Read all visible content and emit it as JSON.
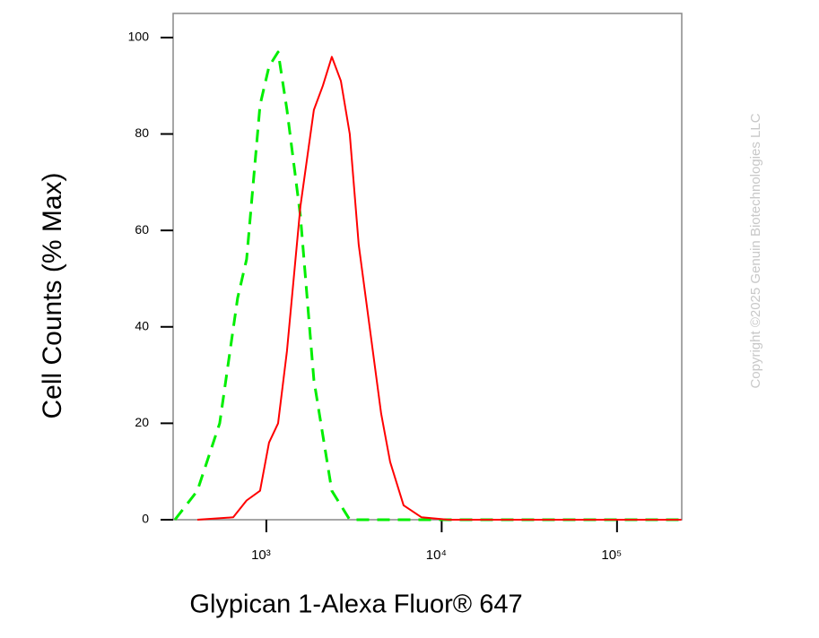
{
  "chart_data": {
    "type": "line",
    "x_label": "Glypican 1-Alexa Fluor® 647",
    "y_label": "Cell Counts (% Max)",
    "watermark": "Copyright ©2025 Genuin Biotechnologies LLC",
    "x_scale": "log",
    "xlim": [
      294,
      234000
    ],
    "xticks": [
      {
        "value": 1000,
        "label": "10³"
      },
      {
        "value": 10000,
        "label": "10⁴"
      },
      {
        "value": 100000,
        "label": "10⁵"
      }
    ],
    "ylim": [
      0,
      105
    ],
    "yticks": [
      0,
      20,
      40,
      60,
      80,
      100
    ],
    "series": [
      {
        "color": "#00ee00",
        "dash": true,
        "x": [
          301,
          404,
          542,
          686,
          772,
          921,
          1036,
          1166,
          1311,
          1564,
          1866,
          2362,
          2991,
          233000
        ],
        "values": [
          0,
          6,
          20,
          46,
          54,
          86,
          94,
          97,
          85,
          63,
          29,
          6,
          0,
          0
        ]
      },
      {
        "color": "#ff0000",
        "dash": false,
        "x": [
          404,
          647,
          772,
          921,
          1036,
          1166,
          1311,
          1564,
          1866,
          2099,
          2362,
          2660,
          2991,
          3365,
          3785,
          4519,
          5082,
          6063,
          7674,
          10920,
          233000
        ],
        "values": [
          0,
          0.5,
          4,
          6,
          16,
          20,
          35,
          65,
          85,
          90,
          96,
          91,
          80,
          57,
          43,
          22,
          12,
          3,
          0.5,
          0,
          0
        ]
      }
    ]
  }
}
